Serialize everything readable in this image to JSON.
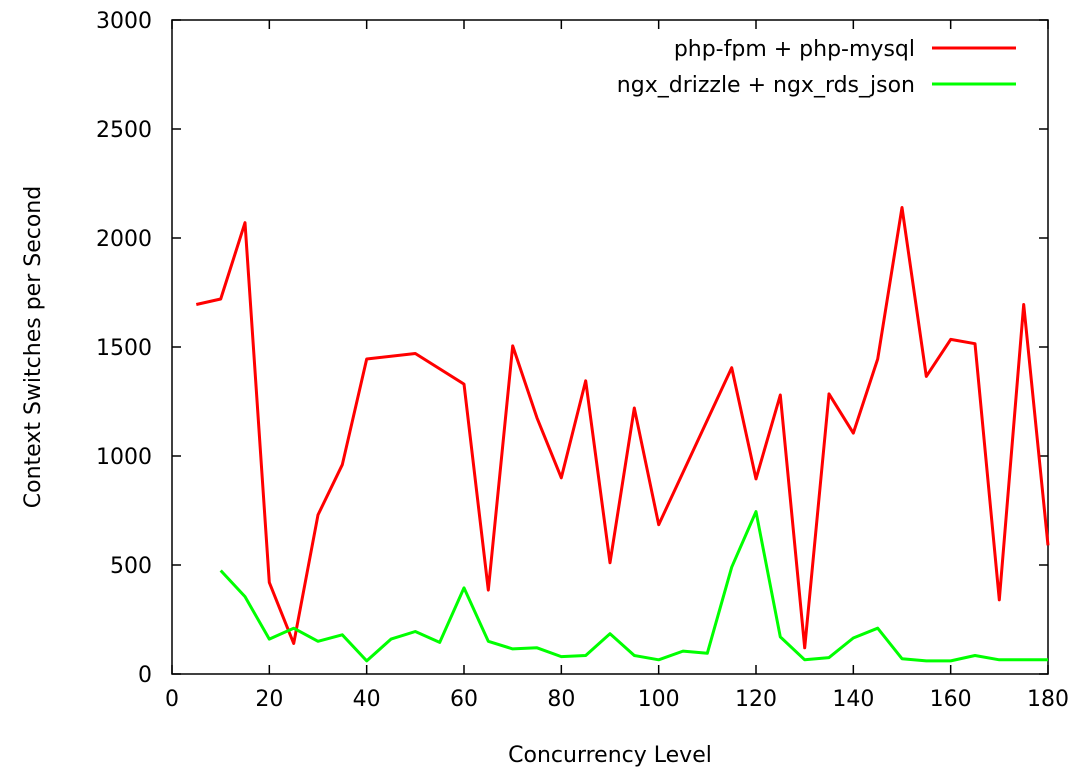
{
  "chart_data": {
    "type": "line",
    "xlabel": "Concurrency Level",
    "ylabel": "Context Switches per Second",
    "xlim": [
      0,
      180
    ],
    "ylim": [
      0,
      3000
    ],
    "xticks": [
      0,
      20,
      40,
      60,
      80,
      100,
      120,
      140,
      160,
      180
    ],
    "yticks": [
      0,
      500,
      1000,
      1500,
      2000,
      2500,
      3000
    ],
    "grid": false,
    "legend_position": "top-right",
    "series": [
      {
        "name": "php-fpm + php-mysql",
        "color": "#ff0000",
        "points": [
          [
            5,
            1695
          ],
          [
            10,
            1720
          ],
          [
            15,
            2070
          ],
          [
            20,
            420
          ],
          [
            25,
            140
          ],
          [
            30,
            730
          ],
          [
            35,
            960
          ],
          [
            40,
            1445
          ],
          [
            50,
            1470
          ],
          [
            60,
            1330
          ],
          [
            65,
            385
          ],
          [
            70,
            1505
          ],
          [
            75,
            1175
          ],
          [
            80,
            900
          ],
          [
            85,
            1345
          ],
          [
            90,
            510
          ],
          [
            95,
            1220
          ],
          [
            100,
            685
          ],
          [
            115,
            1405
          ],
          [
            120,
            895
          ],
          [
            125,
            1280
          ],
          [
            130,
            120
          ],
          [
            135,
            1285
          ],
          [
            140,
            1105
          ],
          [
            145,
            1445
          ],
          [
            150,
            2140
          ],
          [
            155,
            1365
          ],
          [
            160,
            1535
          ],
          [
            165,
            1515
          ],
          [
            170,
            340
          ],
          [
            175,
            1695
          ],
          [
            180,
            590
          ]
        ]
      },
      {
        "name": "ngx_drizzle + ngx_rds_json",
        "color": "#00ff00",
        "points": [
          [
            10,
            475
          ],
          [
            15,
            355
          ],
          [
            20,
            160
          ],
          [
            25,
            210
          ],
          [
            30,
            150
          ],
          [
            35,
            180
          ],
          [
            40,
            60
          ],
          [
            45,
            160
          ],
          [
            50,
            195
          ],
          [
            55,
            145
          ],
          [
            60,
            395
          ],
          [
            65,
            150
          ],
          [
            70,
            115
          ],
          [
            75,
            120
          ],
          [
            80,
            80
          ],
          [
            85,
            85
          ],
          [
            90,
            185
          ],
          [
            95,
            85
          ],
          [
            100,
            65
          ],
          [
            105,
            105
          ],
          [
            110,
            95
          ],
          [
            115,
            490
          ],
          [
            120,
            745
          ],
          [
            125,
            170
          ],
          [
            130,
            65
          ],
          [
            135,
            75
          ],
          [
            140,
            165
          ],
          [
            145,
            210
          ],
          [
            150,
            70
          ],
          [
            155,
            60
          ],
          [
            160,
            60
          ],
          [
            165,
            85
          ],
          [
            170,
            65
          ],
          [
            175,
            65
          ],
          [
            180,
            65
          ]
        ]
      }
    ]
  }
}
